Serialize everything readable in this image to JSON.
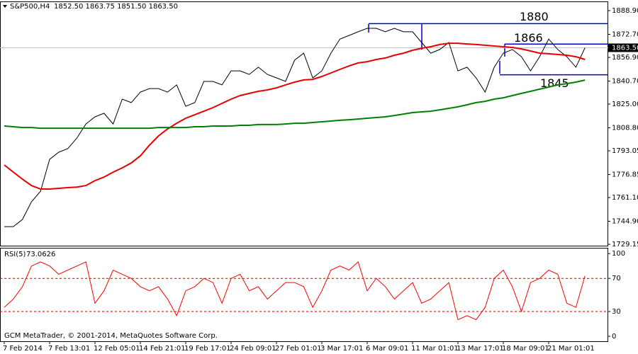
{
  "chart_data": [
    {
      "type": "line",
      "title": "S&P500,H4",
      "last_bar": "1852.50 1863.75 1851.50 1863.50",
      "categories": [
        "7 Feb 2014",
        null,
        null,
        null,
        null,
        "7 Feb 13:01",
        null,
        null,
        null,
        null,
        "12 Feb 05:01",
        null,
        null,
        null,
        null,
        "14 Feb 21:01",
        null,
        null,
        null,
        null,
        "19 Feb 17:01",
        null,
        null,
        null,
        null,
        "24 Feb 09:01",
        null,
        null,
        null,
        null,
        "27 Feb 01:01",
        null,
        null,
        null,
        null,
        "3 Mar 17:01",
        null,
        null,
        null,
        null,
        "6 Mar 09:01",
        null,
        null,
        null,
        null,
        "11 Mar 01:01",
        null,
        null,
        null,
        null,
        "13 Mar 17:01",
        null,
        null,
        null,
        null,
        "18 Mar 09:01",
        null,
        null,
        null,
        null,
        "21 Mar 01:01",
        null,
        null,
        null,
        null
      ],
      "series": [
        {
          "color": "#000000",
          "values": [
            1741.2,
            1741.2,
            1746.1,
            1758.2,
            1765.4,
            1787.2,
            1792.1,
            1794.5,
            1801.7,
            1811.4,
            1816.3,
            1818.7,
            1811.4,
            1828.4,
            1826.0,
            1833.2,
            1835.6,
            1835.6,
            1833.2,
            1838.1,
            1823.5,
            1826.0,
            1840.5,
            1840.5,
            1838.1,
            1847.7,
            1847.7,
            1845.3,
            1850.2,
            1845.3,
            1842.9,
            1840.5,
            1855.0,
            1859.8,
            1842.9,
            1847.7,
            1859.8,
            1869.5,
            1871.9,
            1874.4,
            1876.8,
            1876.8,
            1874.4,
            1876.8,
            1874.4,
            1874.4,
            1867.1,
            1859.8,
            1862.3,
            1867.1,
            1847.7,
            1850.2,
            1842.9,
            1833.2,
            1850.2,
            1859.8,
            1862.3,
            1857.4,
            1847.7,
            1857.4,
            1869.5,
            1862.3,
            1857.4,
            1850.2,
            1863.5
          ]
        },
        {
          "color": "#e60000",
          "values": [
            1783.4,
            1778.5,
            1773.7,
            1769.3,
            1766.9,
            1766.9,
            1767.4,
            1767.9,
            1768.3,
            1769.3,
            1772.7,
            1775.1,
            1778.5,
            1781.4,
            1784.8,
            1789.6,
            1796.9,
            1803.2,
            1808.0,
            1811.9,
            1815.3,
            1817.7,
            1820.1,
            1822.6,
            1825.5,
            1828.4,
            1830.8,
            1832.3,
            1833.7,
            1834.7,
            1836.1,
            1838.1,
            1840.0,
            1841.5,
            1841.9,
            1843.9,
            1846.3,
            1848.7,
            1851.1,
            1853.1,
            1854.0,
            1855.5,
            1856.5,
            1858.4,
            1859.8,
            1861.8,
            1863.2,
            1864.2,
            1865.7,
            1866.6,
            1866.6,
            1866.1,
            1865.7,
            1865.2,
            1864.7,
            1864.2,
            1863.7,
            1862.7,
            1861.3,
            1859.8,
            1859.4,
            1858.9,
            1858.4,
            1857.4,
            1855.5
          ]
        },
        {
          "color": "#008000",
          "values": [
            1810.0,
            1809.5,
            1809.0,
            1809.0,
            1808.5,
            1808.5,
            1808.5,
            1808.5,
            1808.5,
            1808.5,
            1808.5,
            1808.5,
            1808.5,
            1808.5,
            1808.5,
            1808.5,
            1808.5,
            1809.0,
            1809.0,
            1809.0,
            1809.0,
            1809.5,
            1809.5,
            1810.0,
            1810.0,
            1810.0,
            1810.5,
            1810.5,
            1811.0,
            1811.0,
            1811.0,
            1811.4,
            1811.9,
            1811.9,
            1812.4,
            1812.9,
            1813.4,
            1813.9,
            1814.3,
            1814.8,
            1815.3,
            1815.8,
            1816.3,
            1817.2,
            1818.2,
            1819.2,
            1819.7,
            1820.1,
            1821.1,
            1822.1,
            1823.1,
            1824.5,
            1826.0,
            1826.9,
            1828.4,
            1829.3,
            1830.8,
            1832.3,
            1833.7,
            1835.2,
            1836.6,
            1838.1,
            1839.0,
            1840.0,
            1841.4
          ]
        }
      ],
      "ylim": [
        1728.2,
        1894.7
      ],
      "yticks": [
        {
          "value": 1888.9,
          "label": "1888.90"
        },
        {
          "value": 1872.7,
          "label": "1872.70"
        },
        {
          "value": 1856.9,
          "label": "1856.90"
        },
        {
          "value": 1840.7,
          "label": "1840.70"
        },
        {
          "value": 1825.0,
          "label": "1825.00"
        },
        {
          "value": 1808.8,
          "label": "1808.80"
        },
        {
          "value": 1793.05,
          "label": "1793.05"
        },
        {
          "value": 1776.85,
          "label": "1776.85"
        },
        {
          "value": 1761.1,
          "label": "1761.10"
        },
        {
          "value": 1744.9,
          "label": "1744.90"
        },
        {
          "value": 1729.15,
          "label": "1729.15"
        }
      ],
      "current_price": {
        "value": 1863.5,
        "label": "1863.50"
      },
      "levels": [
        1880,
        1866,
        1845
      ],
      "level_color": "#0000cc"
    },
    {
      "type": "line",
      "title": "RSI(5)",
      "series": [
        {
          "color": "#ff0000",
          "values": [
            35,
            45,
            60,
            85,
            90,
            85,
            75,
            80,
            85,
            90,
            40,
            55,
            80,
            75,
            70,
            60,
            55,
            60,
            45,
            25,
            55,
            60,
            70,
            65,
            40,
            70,
            75,
            55,
            60,
            45,
            55,
            65,
            65,
            60,
            35,
            55,
            80,
            85,
            80,
            90,
            55,
            70,
            60,
            45,
            55,
            65,
            40,
            45,
            55,
            65,
            20,
            25,
            20,
            35,
            70,
            80,
            60,
            30,
            65,
            70,
            80,
            75,
            40,
            35,
            73.0626
          ]
        }
      ],
      "ylim": [
        -6,
        107
      ],
      "yticks": [
        0,
        30,
        70,
        100
      ],
      "levels": [
        30,
        70
      ],
      "level_color": "#cc0000",
      "footer": "GCM MetaTrader, © 2001-2014, MetaQuotes Software Corp."
    }
  ]
}
